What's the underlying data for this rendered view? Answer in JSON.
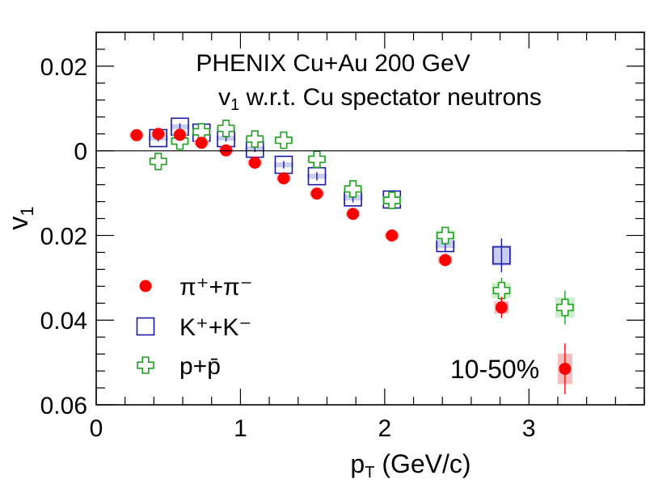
{
  "chart_data": {
    "type": "scatter",
    "title_line1": "PHENIX Cu+Au 200 GeV",
    "title_line2_main": "v",
    "title_line2_sub": "1",
    "title_line2_rest": " w.r.t. Cu spectator neutrons",
    "centrality_label": "10-50%",
    "xlabel_main": "p",
    "xlabel_sub": "T",
    "xlabel_rest": " (GeV/c)",
    "ylabel_main": "v",
    "ylabel_sub": "1",
    "xlim": [
      0,
      3.8
    ],
    "ylim": [
      -0.06,
      0.028
    ],
    "x_ticks": [
      {
        "value": 0,
        "label": "0"
      },
      {
        "value": 1,
        "label": "1"
      },
      {
        "value": 2,
        "label": "2"
      },
      {
        "value": 3,
        "label": "3"
      }
    ],
    "y_ticks": [
      {
        "value": 0.02,
        "label": "0.02"
      },
      {
        "value": 0,
        "label": "0"
      },
      {
        "value": -0.02,
        "label": "0.02"
      },
      {
        "value": -0.04,
        "label": "0.04"
      },
      {
        "value": -0.06,
        "label": "0.06"
      }
    ],
    "series": [
      {
        "name": "pi",
        "legend_label": "π⁺+π⁻",
        "marker": "circle",
        "color": "#ff0000",
        "points": [
          {
            "x": 0.28,
            "y": 0.0037,
            "err": 0.0005
          },
          {
            "x": 0.43,
            "y": 0.004,
            "err": 0.0005
          },
          {
            "x": 0.58,
            "y": 0.0038,
            "err": 0.0005
          },
          {
            "x": 0.73,
            "y": 0.0019,
            "err": 0.0005
          },
          {
            "x": 0.9,
            "y": 0.0001,
            "err": 0.0005
          },
          {
            "x": 1.1,
            "y": -0.0028,
            "err": 0.0005
          },
          {
            "x": 1.3,
            "y": -0.0065,
            "err": 0.0006
          },
          {
            "x": 1.53,
            "y": -0.0101,
            "err": 0.0007
          },
          {
            "x": 1.78,
            "y": -0.0149,
            "err": 0.0008
          },
          {
            "x": 2.05,
            "y": -0.02,
            "err": 0.001
          },
          {
            "x": 2.42,
            "y": -0.0258,
            "err": 0.0015
          },
          {
            "x": 2.81,
            "y": -0.037,
            "err": 0.0025
          },
          {
            "x": 3.25,
            "y": -0.0515,
            "err": 0.006
          }
        ]
      },
      {
        "name": "K",
        "legend_label": "K⁺+K⁻",
        "marker": "open-square",
        "color": "#1a1aa8",
        "points": [
          {
            "x": 0.43,
            "y": 0.003,
            "err": 0.0008
          },
          {
            "x": 0.58,
            "y": 0.0057,
            "err": 0.0008
          },
          {
            "x": 0.73,
            "y": 0.0043,
            "err": 0.0008
          },
          {
            "x": 0.9,
            "y": 0.003,
            "err": 0.0008
          },
          {
            "x": 1.1,
            "y": 0.0005,
            "err": 0.0008
          },
          {
            "x": 1.3,
            "y": -0.0033,
            "err": 0.0009
          },
          {
            "x": 1.53,
            "y": -0.006,
            "err": 0.001
          },
          {
            "x": 1.78,
            "y": -0.011,
            "err": 0.0012
          },
          {
            "x": 2.05,
            "y": -0.0115,
            "err": 0.0015
          },
          {
            "x": 2.42,
            "y": -0.0218,
            "err": 0.002
          },
          {
            "x": 2.81,
            "y": -0.0247,
            "err": 0.004
          }
        ]
      },
      {
        "name": "p",
        "legend_label": "p+p̄",
        "marker": "open-cross",
        "color": "#22a022",
        "points": [
          {
            "x": 0.43,
            "y": -0.0025,
            "err": 0.0008
          },
          {
            "x": 0.58,
            "y": 0.0023,
            "err": 0.0008
          },
          {
            "x": 0.73,
            "y": 0.0045,
            "err": 0.0008
          },
          {
            "x": 0.9,
            "y": 0.0053,
            "err": 0.0008
          },
          {
            "x": 1.1,
            "y": 0.0028,
            "err": 0.0008
          },
          {
            "x": 1.3,
            "y": 0.0025,
            "err": 0.0009
          },
          {
            "x": 1.53,
            "y": -0.002,
            "err": 0.001
          },
          {
            "x": 1.78,
            "y": -0.009,
            "err": 0.0012
          },
          {
            "x": 2.05,
            "y": -0.0117,
            "err": 0.0016
          },
          {
            "x": 2.42,
            "y": -0.02,
            "err": 0.002
          },
          {
            "x": 2.81,
            "y": -0.033,
            "err": 0.003
          },
          {
            "x": 3.25,
            "y": -0.037,
            "err": 0.004
          }
        ]
      }
    ]
  }
}
